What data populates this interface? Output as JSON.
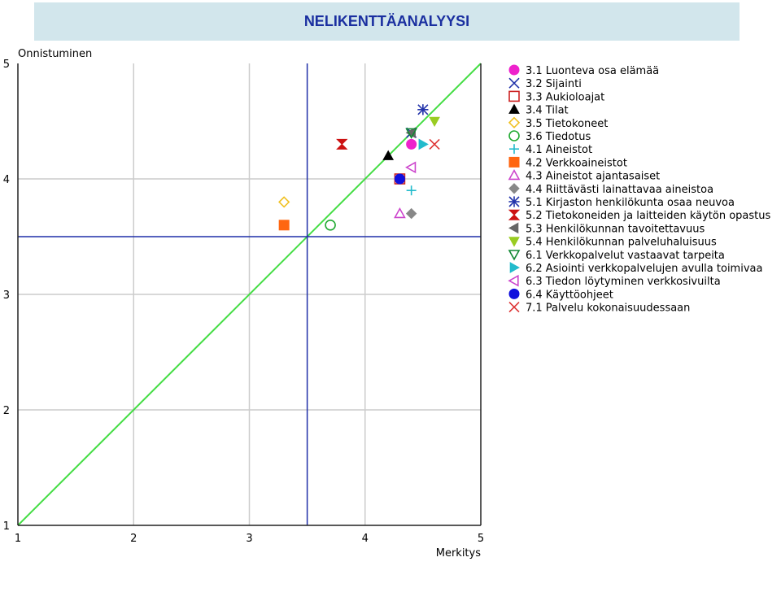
{
  "page": {
    "title": "NELIKENTTÄANALYYSI"
  },
  "chart_data": {
    "type": "scatter",
    "title": "NELIKENTTÄANALYYSI",
    "xlabel": "Merkitys",
    "ylabel": "Onnistuminen",
    "xlim": [
      1,
      5
    ],
    "ylim": [
      1,
      5
    ],
    "xticks": [
      "1",
      "2",
      "3",
      "4",
      "5"
    ],
    "yticks": [
      "1",
      "2",
      "3",
      "4",
      "5"
    ],
    "grid": true,
    "legend": "right",
    "quadrant_lines": {
      "x": 3.5,
      "y": 3.5,
      "color": "#1f2fa8"
    },
    "diagonal": {
      "from": [
        1,
        1
      ],
      "to": [
        5,
        5
      ],
      "color": "#44dd44"
    },
    "series": [
      {
        "name": "3.1 Luonteva osa elämää",
        "marker": "circle-filled",
        "color": "#ee22cc",
        "x": 4.4,
        "y": 4.3
      },
      {
        "name": "3.2 Sijainti",
        "marker": "x",
        "color": "#2233aa",
        "x": 4.4,
        "y": 4.4
      },
      {
        "name": "3.3 Aukioloajat",
        "marker": "square-open",
        "color": "#cc2222",
        "x": 4.3,
        "y": 4.0
      },
      {
        "name": "3.4 Tilat",
        "marker": "triangle-up-filled",
        "color": "#000000",
        "x": 4.2,
        "y": 4.2
      },
      {
        "name": "3.5 Tietokoneet",
        "marker": "diamond-open",
        "color": "#f0c020",
        "x": 3.3,
        "y": 3.8
      },
      {
        "name": "3.6 Tiedotus",
        "marker": "circle-open",
        "color": "#22aa33",
        "x": 3.7,
        "y": 3.6
      },
      {
        "name": "4.1 Aineistot",
        "marker": "plus",
        "color": "#22bbcc",
        "x": 4.4,
        "y": 3.9
      },
      {
        "name": "4.2 Verkkoaineistot",
        "marker": "square-filled",
        "color": "#ff6611",
        "x": 3.3,
        "y": 3.6
      },
      {
        "name": "4.3 Aineistot ajantasaiset",
        "marker": "triangle-up-open",
        "color": "#cc44cc",
        "x": 4.3,
        "y": 3.7
      },
      {
        "name": "4.4 Riittävästi lainattavaa aineistoa",
        "marker": "diamond-filled",
        "color": "#888888",
        "x": 4.4,
        "y": 3.7
      },
      {
        "name": "5.1 Kirjaston henkilökunta osaa neuvoa",
        "marker": "asterisk",
        "color": "#2233aa",
        "x": 4.5,
        "y": 4.6
      },
      {
        "name": "5.2 Tietokoneiden ja laitteiden käytön opastus",
        "marker": "hourglass",
        "color": "#cc1111",
        "x": 3.8,
        "y": 4.3
      },
      {
        "name": "5.3 Henkilökunnan tavoitettavuus",
        "marker": "triangle-left-filled",
        "color": "#666666",
        "x": 4.4,
        "y": 4.4
      },
      {
        "name": "5.4 Henkilökunnan palveluhaluisuus",
        "marker": "triangle-down-filled",
        "color": "#99cc22",
        "x": 4.6,
        "y": 4.5
      },
      {
        "name": "6.1 Verkkopalvelut vastaavat tarpeita",
        "marker": "triangle-down-open",
        "color": "#118833",
        "x": 4.4,
        "y": 4.4
      },
      {
        "name": "6.2 Asiointi verkkopalvelujen avulla toimivaa",
        "marker": "triangle-right-filled",
        "color": "#22bbcc",
        "x": 4.5,
        "y": 4.3
      },
      {
        "name": "6.3 Tiedon löytyminen verkkosivuilta",
        "marker": "triangle-left-open",
        "color": "#cc44cc",
        "x": 4.4,
        "y": 4.1
      },
      {
        "name": "6.4 Käyttöohjeet",
        "marker": "circle-filled",
        "color": "#1111dd",
        "x": 4.3,
        "y": 4.0
      },
      {
        "name": "7.1 Palvelu kokonaisuudessaan",
        "marker": "x",
        "color": "#dd3333",
        "x": 4.6,
        "y": 4.3
      }
    ]
  }
}
